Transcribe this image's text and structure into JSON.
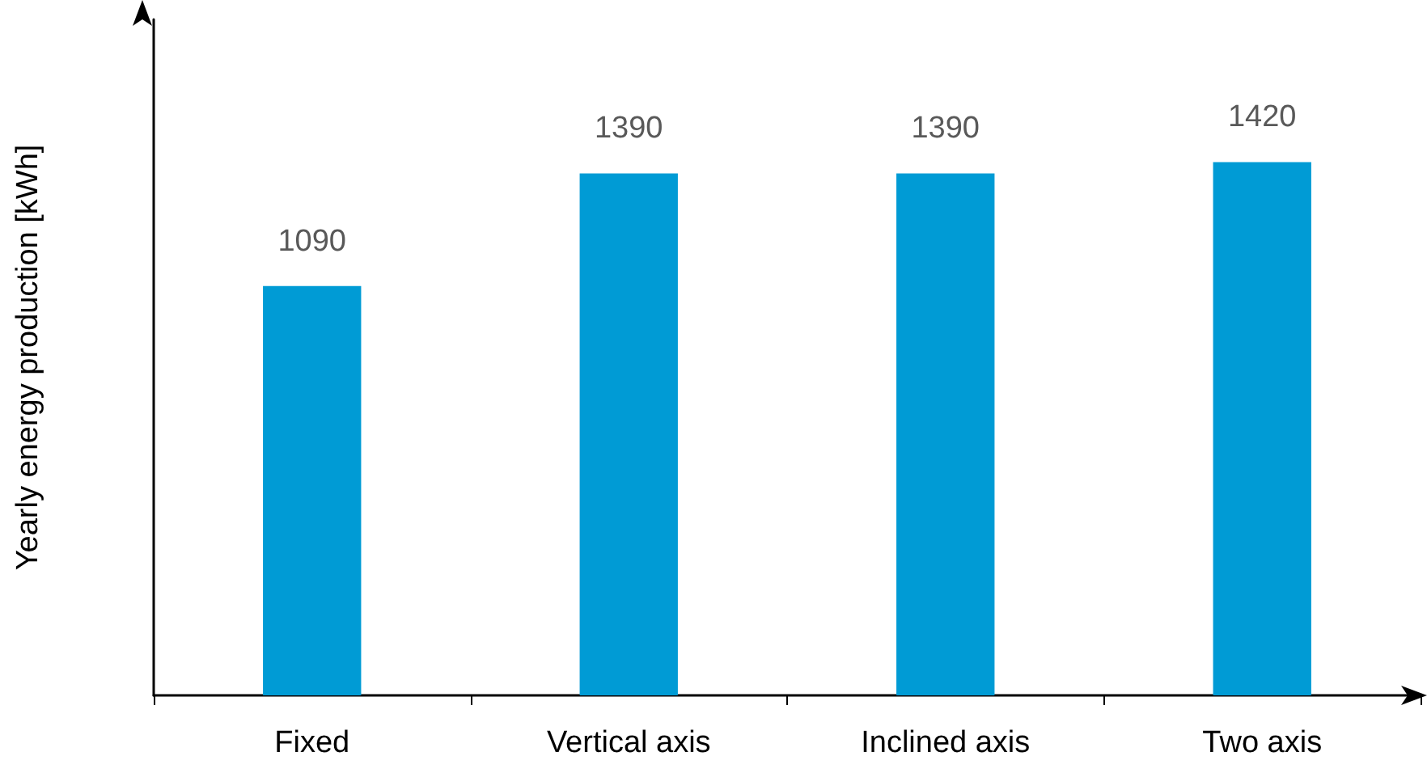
{
  "chart_data": {
    "type": "bar",
    "ylabel": "Yearly energy production [kWh]",
    "categories": [
      "Fixed",
      "Vertical axis",
      "Inclined axis",
      "Two axis"
    ],
    "values": [
      1090,
      1390,
      1390,
      1420
    ],
    "color": "#009bd5",
    "ylim": [
      0,
      1800
    ],
    "data_labels": true,
    "grid": false,
    "tick_labels": "x"
  }
}
